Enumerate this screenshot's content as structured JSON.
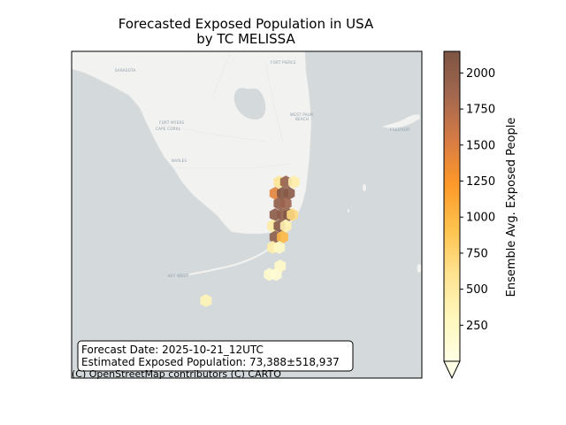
{
  "title_line1": "Forecasted Exposed Population in USA",
  "title_line2": "by TC MELISSA",
  "info_box": {
    "forecast_date": "Forecast Date: 2025-10-21_12UTC",
    "exposed_population": "Estimated Exposed Population: 73,388±518,937"
  },
  "attribution": "(C) OpenStreetMap contributors (C) CARTO",
  "place_labels": {
    "fort_pierce": "FORT PIERCE",
    "sarasota": "SARASOTA",
    "west_palm_beach_1": "WEST PALM",
    "west_palm_beach_2": "BEACH",
    "freeport": "FREEPORT",
    "fort_myers": "FORT MYERS",
    "cape_coral": "CAPE CORAL",
    "naples": "NAPLES",
    "key_west": "KEY WEST"
  },
  "colorbar": {
    "label": "Ensemble Avg. Exposed People",
    "min": 0,
    "max": 2150,
    "ticks": [
      "250",
      "500",
      "750",
      "1000",
      "1250",
      "1500",
      "1750",
      "2000"
    ],
    "tick_values": [
      250,
      500,
      750,
      1000,
      1250,
      1500,
      1750,
      2000
    ],
    "extend": "min",
    "colormap": [
      "#ffffe5",
      "#fff7bc",
      "#fee391",
      "#fec44f",
      "#fe9929",
      "#d77c44",
      "#a2674f",
      "#7d5443"
    ]
  },
  "hexbins": [
    {
      "lon": -80.3,
      "lat": 26.45,
      "value": 600
    },
    {
      "lon": -80.22,
      "lat": 26.45,
      "value": 1950
    },
    {
      "lon": -80.12,
      "lat": 26.45,
      "value": 450
    },
    {
      "lon": -80.35,
      "lat": 26.33,
      "value": 1450
    },
    {
      "lon": -80.26,
      "lat": 26.33,
      "value": 2100
    },
    {
      "lon": -80.18,
      "lat": 26.33,
      "value": 2050
    },
    {
      "lon": -80.3,
      "lat": 26.22,
      "value": 2000
    },
    {
      "lon": -80.22,
      "lat": 26.22,
      "value": 1900
    },
    {
      "lon": -80.35,
      "lat": 26.1,
      "value": 2050
    },
    {
      "lon": -80.26,
      "lat": 26.1,
      "value": 2000
    },
    {
      "lon": -80.18,
      "lat": 26.1,
      "value": 2100
    },
    {
      "lon": -80.14,
      "lat": 26.1,
      "value": 700
    },
    {
      "lon": -80.38,
      "lat": 25.98,
      "value": 500
    },
    {
      "lon": -80.3,
      "lat": 25.98,
      "value": 2100
    },
    {
      "lon": -80.22,
      "lat": 25.98,
      "value": 400
    },
    {
      "lon": -80.35,
      "lat": 25.86,
      "value": 2000
    },
    {
      "lon": -80.26,
      "lat": 25.86,
      "value": 1000
    },
    {
      "lon": -80.38,
      "lat": 25.75,
      "value": 450
    },
    {
      "lon": -80.3,
      "lat": 25.75,
      "value": 250
    },
    {
      "lon": -80.42,
      "lat": 25.46,
      "value": 180
    },
    {
      "lon": -80.34,
      "lat": 25.46,
      "value": 150
    },
    {
      "lon": -80.29,
      "lat": 25.55,
      "value": 220
    },
    {
      "lon": -81.2,
      "lat": 25.18,
      "value": 350
    }
  ]
}
